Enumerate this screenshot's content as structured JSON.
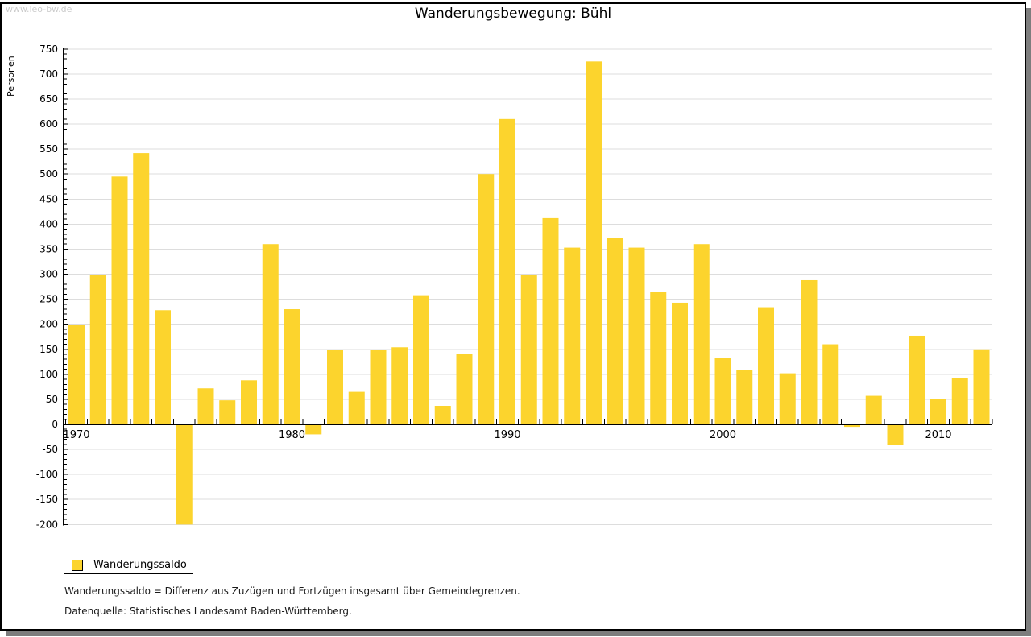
{
  "watermark": "www.leo-bw.de",
  "title": "Wanderungsbewegung: Bühl",
  "legend": {
    "label": "Wanderungssaldo"
  },
  "footnotes": [
    "Wanderungssaldo = Differenz aus Zuzügen und Fortzügen insgesamt über Gemeindegrenzen.",
    "Datenquelle: Statistisches Landesamt Baden-Württemberg."
  ],
  "colors": {
    "bar": "#fcd42d",
    "grid": "#dddddd",
    "axis": "#000000",
    "text": "#000000",
    "watermark": "#cccccc",
    "frame_shadow": "#7d7d7d"
  },
  "chart_data": {
    "type": "bar",
    "title": "Wanderungsbewegung: Bühl",
    "xlabel": "",
    "ylabel": "Personen",
    "ylim": [
      -200,
      750
    ],
    "y_major_step": 50,
    "y_minor_step": 10,
    "grid": true,
    "legend_position": "bottom-left",
    "x_labeled_ticks": [
      1970,
      1980,
      1990,
      2000,
      2010
    ],
    "x": [
      1970,
      1971,
      1972,
      1973,
      1974,
      1975,
      1976,
      1977,
      1978,
      1979,
      1980,
      1981,
      1982,
      1983,
      1984,
      1985,
      1986,
      1987,
      1988,
      1989,
      1990,
      1991,
      1992,
      1993,
      1994,
      1995,
      1996,
      1997,
      1998,
      1999,
      2000,
      2001,
      2002,
      2003,
      2004,
      2005,
      2006,
      2007,
      2008,
      2009,
      2010,
      2011,
      2012
    ],
    "series": [
      {
        "name": "Wanderungssaldo",
        "values": [
          198,
          298,
          495,
          542,
          228,
          -200,
          72,
          48,
          88,
          360,
          230,
          -20,
          148,
          65,
          148,
          154,
          258,
          37,
          140,
          500,
          610,
          298,
          412,
          353,
          725,
          372,
          353,
          264,
          243,
          360,
          133,
          109,
          234,
          102,
          288,
          160,
          -5,
          57,
          -41,
          177,
          50,
          92,
          150
        ]
      }
    ]
  }
}
